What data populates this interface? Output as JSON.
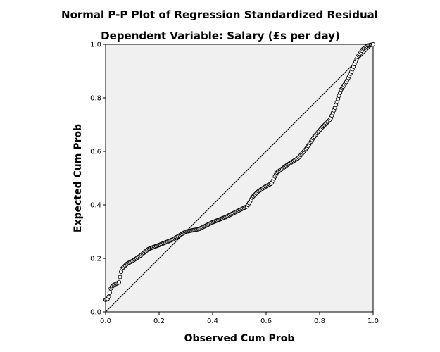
{
  "chart_data": {
    "type": "scatter",
    "title": "Normal P-P Plot of Regression Standardized Residual",
    "subtitle": "Dependent Variable: Salary (£s per day)",
    "xlabel": "Observed Cum Prob",
    "ylabel": "Expected Cum Prob",
    "xlim": [
      0.0,
      1.0
    ],
    "ylim": [
      0.0,
      1.0
    ],
    "x_ticks": [
      "0.0",
      "0.2",
      "0.4",
      "0.6",
      "0.8",
      "1.0"
    ],
    "y_ticks": [
      "0.0",
      "0.2",
      "0.4",
      "0.6",
      "0.8",
      "1.0"
    ],
    "grid": false,
    "legend": "none",
    "reference_line": {
      "from": [
        0,
        0
      ],
      "to": [
        1,
        1
      ]
    },
    "curve": {
      "x": [
        0.0,
        0.01,
        0.02,
        0.03,
        0.04,
        0.05,
        0.06,
        0.08,
        0.1,
        0.13,
        0.16,
        0.2,
        0.25,
        0.3,
        0.35,
        0.4,
        0.45,
        0.5,
        0.53,
        0.55,
        0.57,
        0.6,
        0.62,
        0.64,
        0.68,
        0.72,
        0.75,
        0.78,
        0.81,
        0.84,
        0.86,
        0.88,
        0.9,
        0.92,
        0.94,
        0.96,
        0.98,
        1.0
      ],
      "y": [
        0.045,
        0.05,
        0.09,
        0.1,
        0.105,
        0.11,
        0.16,
        0.18,
        0.19,
        0.21,
        0.235,
        0.25,
        0.27,
        0.3,
        0.31,
        0.335,
        0.355,
        0.38,
        0.395,
        0.43,
        0.45,
        0.47,
        0.48,
        0.52,
        0.55,
        0.575,
        0.61,
        0.655,
        0.69,
        0.72,
        0.77,
        0.83,
        0.86,
        0.9,
        0.95,
        0.98,
        0.995,
        1.0
      ]
    },
    "point_count": 260,
    "colors": {
      "plot_background": "#f0f0f0",
      "marker_edge": "#000000",
      "marker_fill": "#ffffff",
      "line": "#000000"
    }
  }
}
